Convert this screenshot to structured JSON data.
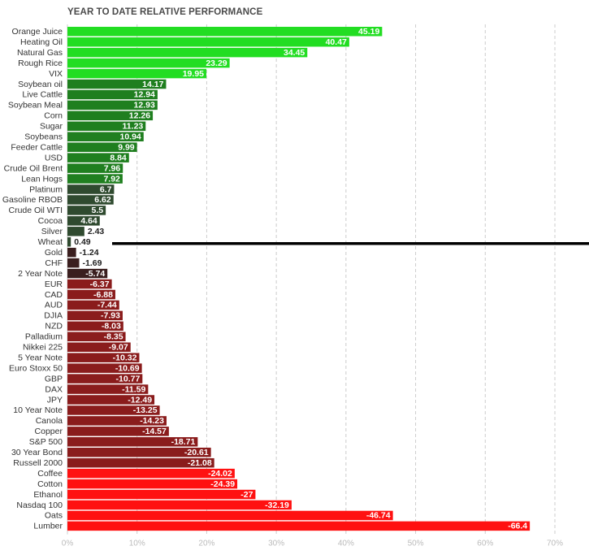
{
  "chart_data": {
    "type": "bar",
    "orientation": "horizontal",
    "title": "YEAR TO DATE RELATIVE PERFORMANCE",
    "xlim": [
      0,
      70
    ],
    "x_ticks": [
      "0%",
      "10%",
      "20%",
      "30%",
      "40%",
      "50%",
      "60%",
      "70%"
    ],
    "grid": true,
    "categories": [
      "Orange Juice",
      "Heating Oil",
      "Natural Gas",
      "Rough Rice",
      "VIX",
      "Soybean oil",
      "Live Cattle",
      "Soybean Meal",
      "Corn",
      "Sugar",
      "Soybeans",
      "Feeder Cattle",
      "USD",
      "Crude Oil Brent",
      "Lean Hogs",
      "Platinum",
      "Gasoline RBOB",
      "Crude Oil WTI",
      "Cocoa",
      "Silver",
      "Wheat",
      "Gold",
      "CHF",
      "2 Year Note",
      "EUR",
      "CAD",
      "AUD",
      "DJIA",
      "NZD",
      "Palladium",
      "Nikkei 225",
      "5 Year Note",
      "Euro Stoxx 50",
      "GBP",
      "DAX",
      "JPY",
      "10 Year Note",
      "Canola",
      "Copper",
      "S&P 500",
      "30 Year Bond",
      "Russell 2000",
      "Coffee",
      "Cotton",
      "Ethanol",
      "Nasdaq 100",
      "Oats",
      "Lumber"
    ],
    "values": [
      45.19,
      40.47,
      34.45,
      23.29,
      19.95,
      14.17,
      12.94,
      12.93,
      12.26,
      11.23,
      10.94,
      9.99,
      8.84,
      7.96,
      7.92,
      6.7,
      6.62,
      5.5,
      4.64,
      2.43,
      0.49,
      -1.24,
      -1.69,
      -5.74,
      -6.37,
      -6.88,
      -7.44,
      -7.93,
      -8.03,
      -8.35,
      -9.07,
      -10.32,
      -10.69,
      -10.77,
      -11.59,
      -12.49,
      -13.25,
      -14.23,
      -14.57,
      -18.71,
      -20.61,
      -21.08,
      -24.02,
      -24.39,
      -27,
      -32.19,
      -46.74,
      -66.4
    ],
    "value_labels": [
      "45.19",
      "40.47",
      "34.45",
      "23.29",
      "19.95",
      "14.17",
      "12.94",
      "12.93",
      "12.26",
      "11.23",
      "10.94",
      "9.99",
      "8.84",
      "7.96",
      "7.92",
      "6.7",
      "6.62",
      "5.5",
      "4.64",
      "2.43",
      "0.49",
      "-1.24",
      "-1.69",
      "-5.74",
      "-6.37",
      "-6.88",
      "-7.44",
      "-7.93",
      "-8.03",
      "-8.35",
      "-9.07",
      "-10.32",
      "-10.69",
      "-10.77",
      "-11.59",
      "-12.49",
      "-13.25",
      "-14.23",
      "-14.57",
      "-18.71",
      "-20.61",
      "-21.08",
      "-24.02",
      "-24.39",
      "-27",
      "-32.19",
      "-46.74",
      "-66.4"
    ],
    "colors": {
      "strong_positive": "#22dd22",
      "positive": "#1f7f1f",
      "weak_positive": "#2f4a2f",
      "weak_negative": "#3a1e1e",
      "negative": "#8a1c1c",
      "strong_negative": "#ff1111",
      "grid": "#cccccc",
      "divider": "#000000"
    }
  }
}
